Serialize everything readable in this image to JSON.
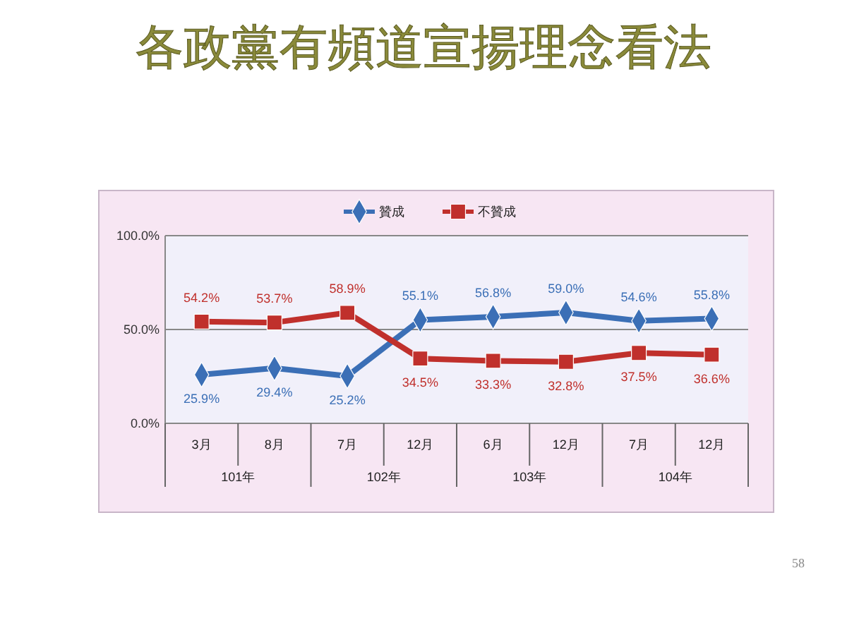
{
  "chart_data": {
    "type": "line",
    "title": "各政黨有頻道宣揚理念看法",
    "categories": [
      "3月",
      "8月",
      "7月",
      "12月",
      "6月",
      "12月",
      "7月",
      "12月"
    ],
    "series": [
      {
        "name": "贊成",
        "color": "#3b6fb6",
        "marker": "diamond",
        "values": [
          25.9,
          29.4,
          25.2,
          55.1,
          56.8,
          59.0,
          54.6,
          55.8
        ],
        "value_labels": [
          "25.9%",
          "29.4%",
          "25.2%",
          "55.1%",
          "56.8%",
          "59.0%",
          "54.6%",
          "55.8%"
        ]
      },
      {
        "name": "不贊成",
        "color": "#c0302c",
        "marker": "square",
        "values": [
          54.2,
          53.7,
          58.9,
          34.5,
          33.3,
          32.8,
          37.5,
          36.6
        ],
        "value_labels": [
          "54.2%",
          "53.7%",
          "58.9%",
          "34.5%",
          "33.3%",
          "32.8%",
          "37.5%",
          "36.6%"
        ]
      }
    ],
    "ylim": [
      0,
      100
    ],
    "yticks": [
      {
        "value": 0,
        "label": "0.0%"
      },
      {
        "value": 50,
        "label": "50.0%"
      },
      {
        "value": 100,
        "label": "100.0%"
      }
    ],
    "grid": "y",
    "legend": "top",
    "line_style": "solid",
    "annotations": [
      "101年",
      "102年",
      "103年",
      "104年",
      "58"
    ]
  }
}
